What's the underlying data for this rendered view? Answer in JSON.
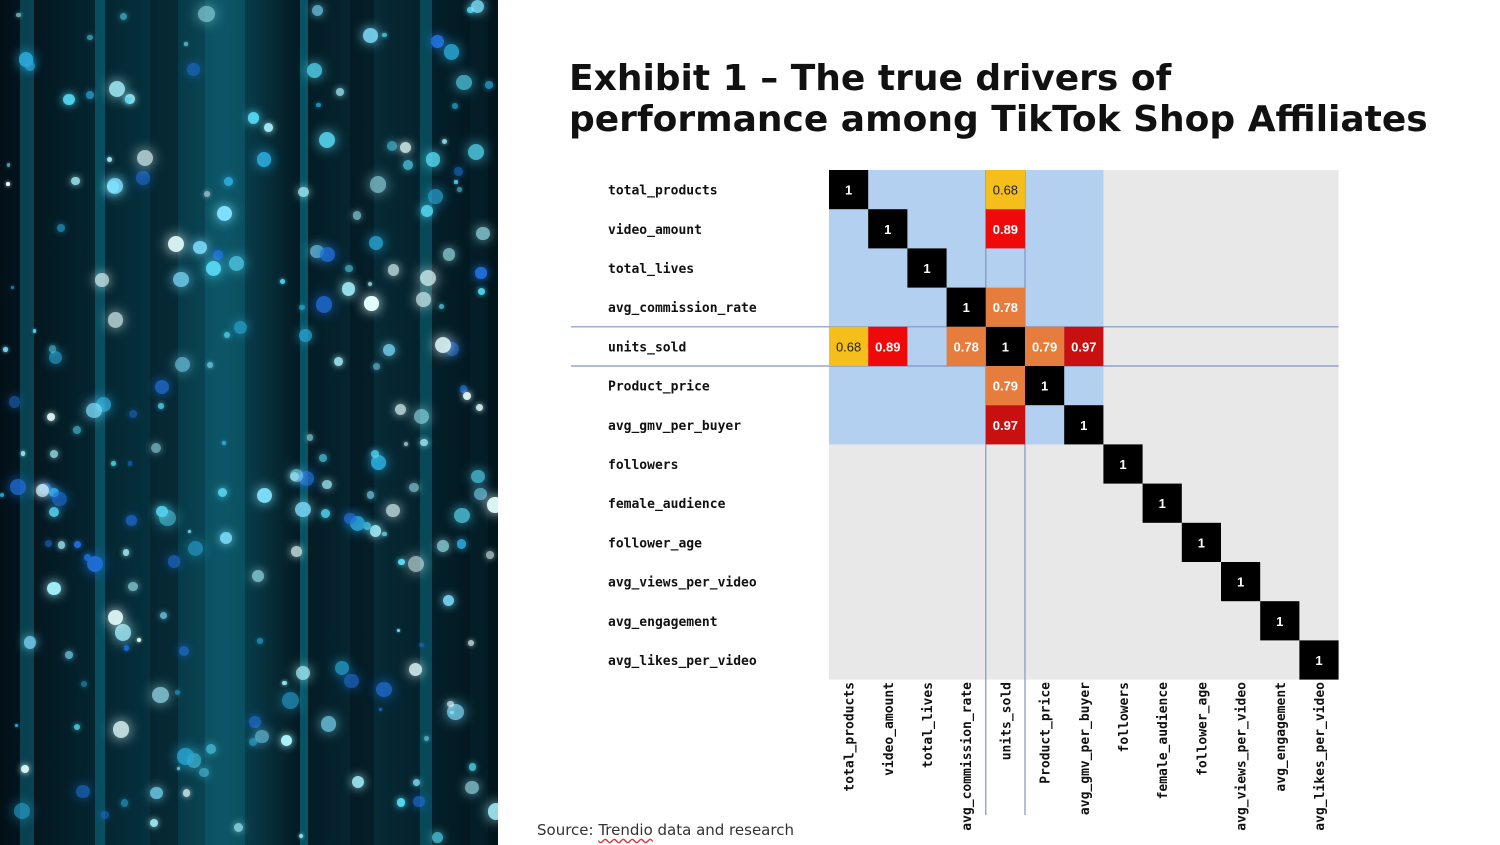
{
  "title": "Exhibit 1 – The true drivers of performance among TikTok Shop Affiliates",
  "source": {
    "prefix": "Source: ",
    "brand": "Trendio",
    "suffix": " data and research"
  },
  "colors": {
    "highlight": "#b4d0f0",
    "background_cell": "#e8e8e8",
    "diagonal": "#000000",
    "band_line": "#7f95c4",
    "corr_068": "#f5be1a",
    "corr_089": "#ee0a0a",
    "corr_078": "#e67d3d",
    "corr_079": "#e67d3d",
    "corr_097": "#c81010"
  },
  "chart_data": {
    "type": "heatmap",
    "title": "Exhibit 1 – The true drivers of performance among TikTok Shop Affiliates",
    "variables": [
      "total_products",
      "video_amount",
      "total_lives",
      "avg_commission_rate",
      "units_sold",
      "Product_price",
      "avg_gmv_per_buyer",
      "followers",
      "female_audience",
      "follower_age",
      "avg_views_per_video",
      "avg_engagement",
      "avg_likes_per_video"
    ],
    "highlight_variables": [
      "total_products",
      "video_amount",
      "total_lives",
      "avg_commission_rate",
      "units_sold",
      "Product_price",
      "avg_gmv_per_buyer"
    ],
    "focus_variable": "units_sold",
    "cells": [
      {
        "row": 0,
        "col": 0,
        "value": 1,
        "label": "1"
      },
      {
        "row": 1,
        "col": 1,
        "value": 1,
        "label": "1"
      },
      {
        "row": 2,
        "col": 2,
        "value": 1,
        "label": "1"
      },
      {
        "row": 3,
        "col": 3,
        "value": 1,
        "label": "1"
      },
      {
        "row": 4,
        "col": 4,
        "value": 1,
        "label": "1"
      },
      {
        "row": 5,
        "col": 5,
        "value": 1,
        "label": "1"
      },
      {
        "row": 6,
        "col": 6,
        "value": 1,
        "label": "1"
      },
      {
        "row": 7,
        "col": 7,
        "value": 1,
        "label": "1"
      },
      {
        "row": 8,
        "col": 8,
        "value": 1,
        "label": "1"
      },
      {
        "row": 9,
        "col": 9,
        "value": 1,
        "label": "1"
      },
      {
        "row": 10,
        "col": 10,
        "value": 1,
        "label": "1"
      },
      {
        "row": 11,
        "col": 11,
        "value": 1,
        "label": "1"
      },
      {
        "row": 12,
        "col": 12,
        "value": 1,
        "label": "1"
      },
      {
        "row": 0,
        "col": 4,
        "value": 0.68,
        "label": "0.68"
      },
      {
        "row": 1,
        "col": 4,
        "value": 0.89,
        "label": "0.89"
      },
      {
        "row": 3,
        "col": 4,
        "value": 0.78,
        "label": "0.78"
      },
      {
        "row": 4,
        "col": 0,
        "value": 0.68,
        "label": "0.68"
      },
      {
        "row": 4,
        "col": 1,
        "value": 0.89,
        "label": "0.89"
      },
      {
        "row": 4,
        "col": 3,
        "value": 0.78,
        "label": "0.78"
      },
      {
        "row": 4,
        "col": 5,
        "value": 0.79,
        "label": "0.79"
      },
      {
        "row": 4,
        "col": 6,
        "value": 0.97,
        "label": "0.97"
      },
      {
        "row": 5,
        "col": 4,
        "value": 0.79,
        "label": "0.79"
      },
      {
        "row": 6,
        "col": 4,
        "value": 0.97,
        "label": "0.97"
      }
    ]
  }
}
